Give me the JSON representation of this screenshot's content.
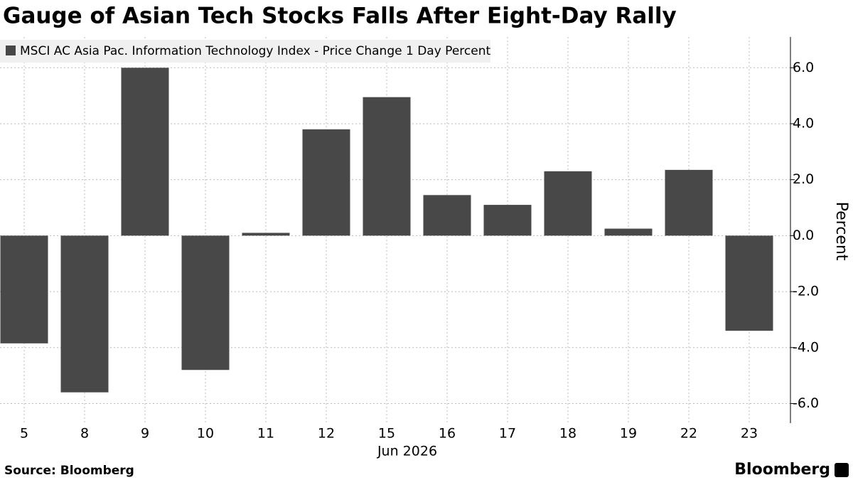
{
  "chart_data": {
    "type": "bar",
    "title": "Gauge of Asian Tech Stocks Falls After Eight-Day Rally",
    "legend": "MSCI AC Asia Pac. Information Technology Index - Price Change 1 Day Percent",
    "categories": [
      "5",
      "8",
      "9",
      "10",
      "11",
      "12",
      "15",
      "16",
      "17",
      "18",
      "19",
      "22",
      "23"
    ],
    "values": [
      -3.85,
      -5.6,
      6.0,
      -4.8,
      0.1,
      3.8,
      4.95,
      1.45,
      1.1,
      2.3,
      0.25,
      2.35,
      -3.4
    ],
    "color": "#484848",
    "x_label": "Jun 2026",
    "y_label": "Percent",
    "ylim": [
      -6.7,
      7.1
    ],
    "yticks": [
      {
        "value": 6,
        "label": "6.0"
      },
      {
        "value": 4,
        "label": "4.0"
      },
      {
        "value": 2,
        "label": "2.0"
      },
      {
        "value": 0,
        "label": "0.0"
      },
      {
        "value": -2,
        "label": "-2.0"
      },
      {
        "value": -4,
        "label": "-4.0"
      },
      {
        "value": -6,
        "label": "-6.0"
      }
    ],
    "grid": true,
    "source": "Source: Bloomberg",
    "brand": "Bloomberg"
  }
}
